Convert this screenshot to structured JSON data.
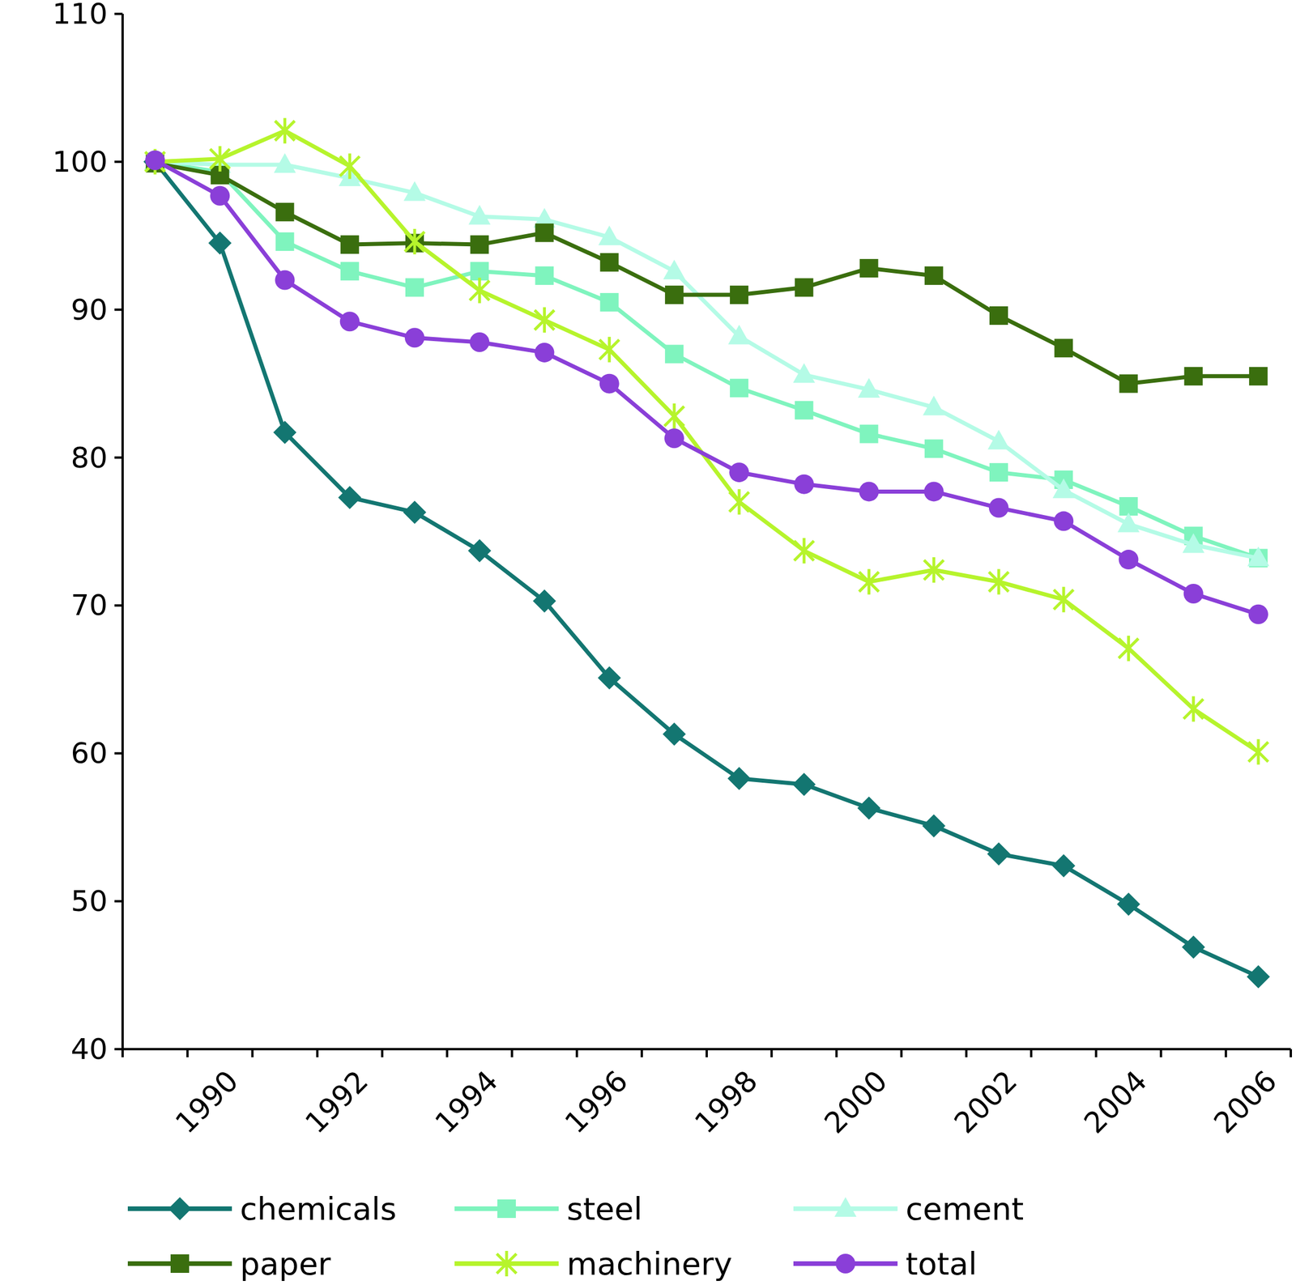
{
  "chart_data": {
    "type": "line",
    "categories": [
      null,
      1990,
      null,
      1992,
      null,
      1994,
      null,
      1996,
      null,
      1998,
      null,
      2000,
      null,
      2002,
      null,
      2004,
      null,
      2006
    ],
    "ylim": [
      40,
      110
    ],
    "yticks": [
      40,
      50,
      60,
      70,
      80,
      90,
      100,
      110
    ],
    "grid": false,
    "legend": "bottom",
    "series": [
      {
        "name": "chemicals",
        "color": "#137671",
        "marker": "diamond",
        "values": [
          100,
          94.5,
          81.7,
          77.3,
          76.3,
          73.7,
          70.3,
          65.1,
          61.3,
          58.3,
          57.9,
          56.3,
          55.1,
          53.2,
          52.4,
          49.8,
          46.9,
          44.9
        ]
      },
      {
        "name": "steel",
        "color": "#7ff4be",
        "marker": "square",
        "values": [
          100,
          99.3,
          94.6,
          92.6,
          91.5,
          92.6,
          92.3,
          90.5,
          87.0,
          84.7,
          83.2,
          81.6,
          80.6,
          79.0,
          78.5,
          76.7,
          74.7,
          73.2
        ]
      },
      {
        "name": "cement",
        "color": "#b4fbe6",
        "marker": "triangle",
        "values": [
          100,
          99.8,
          99.8,
          98.9,
          97.9,
          96.3,
          96.1,
          94.9,
          92.6,
          88.2,
          85.6,
          84.6,
          83.4,
          81.1,
          77.8,
          75.5,
          74.1,
          73.2
        ]
      },
      {
        "name": "paper",
        "color": "#3a6e0e",
        "marker": "square",
        "values": [
          99.9,
          99.1,
          96.6,
          94.4,
          94.5,
          94.4,
          95.2,
          93.2,
          91.0,
          91.0,
          91.5,
          92.8,
          92.3,
          89.6,
          87.4,
          85.0,
          85.5,
          85.5
        ]
      },
      {
        "name": "machinery",
        "color": "#b6f42c",
        "marker": "star",
        "values": [
          100,
          100.2,
          102.1,
          99.7,
          94.6,
          91.3,
          89.3,
          87.3,
          82.8,
          77.0,
          73.7,
          71.6,
          72.4,
          71.6,
          70.4,
          67.1,
          63.0,
          60.1
        ]
      },
      {
        "name": "total",
        "color": "#8a3fd8",
        "marker": "circle",
        "values": [
          100.1,
          97.7,
          92.0,
          89.2,
          88.1,
          87.8,
          87.1,
          85.0,
          81.3,
          79.0,
          78.2,
          77.7,
          77.7,
          76.6,
          75.7,
          73.1,
          70.8,
          69.4
        ]
      }
    ]
  }
}
